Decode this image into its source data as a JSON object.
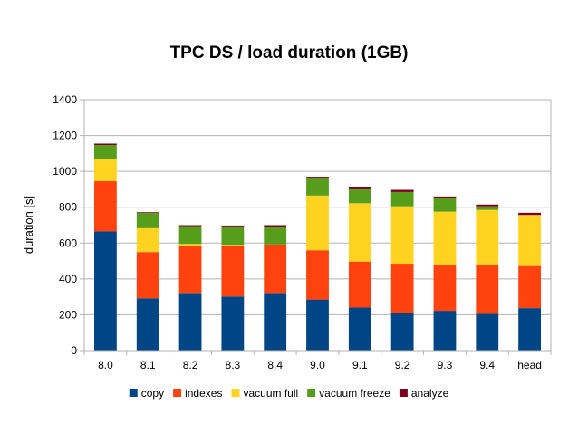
{
  "chart_data": {
    "type": "bar",
    "stacked": true,
    "title": "TPC DS / load duration (1GB)",
    "xlabel": "",
    "ylabel": "duration [s]",
    "ylim": [
      0,
      1400
    ],
    "yticks": [
      0,
      200,
      400,
      600,
      800,
      1000,
      1200,
      1400
    ],
    "grid": true,
    "legend_position": "bottom",
    "categories": [
      "8.0",
      "8.1",
      "8.2",
      "8.3",
      "8.4",
      "9.0",
      "9.1",
      "9.2",
      "9.3",
      "9.4",
      "head"
    ],
    "series": [
      {
        "name": "copy",
        "color": "#004586",
        "values": [
          665,
          292,
          322,
          302,
          322,
          285,
          240,
          210,
          222,
          205,
          237
        ]
      },
      {
        "name": "indexes",
        "color": "#ff420e",
        "values": [
          280,
          258,
          263,
          280,
          270,
          275,
          257,
          275,
          258,
          275,
          235
        ]
      },
      {
        "name": "vacuum full",
        "color": "#ffd320",
        "values": [
          122,
          133,
          10,
          8,
          0,
          305,
          325,
          320,
          295,
          305,
          285
        ]
      },
      {
        "name": "vacuum freeze",
        "color": "#579d1c",
        "values": [
          80,
          85,
          100,
          103,
          98,
          95,
          78,
          80,
          75,
          20,
          0
        ]
      },
      {
        "name": "analyze",
        "color": "#7e0021",
        "values": [
          8,
          4,
          5,
          5,
          10,
          10,
          15,
          12,
          10,
          10,
          12
        ]
      }
    ]
  }
}
